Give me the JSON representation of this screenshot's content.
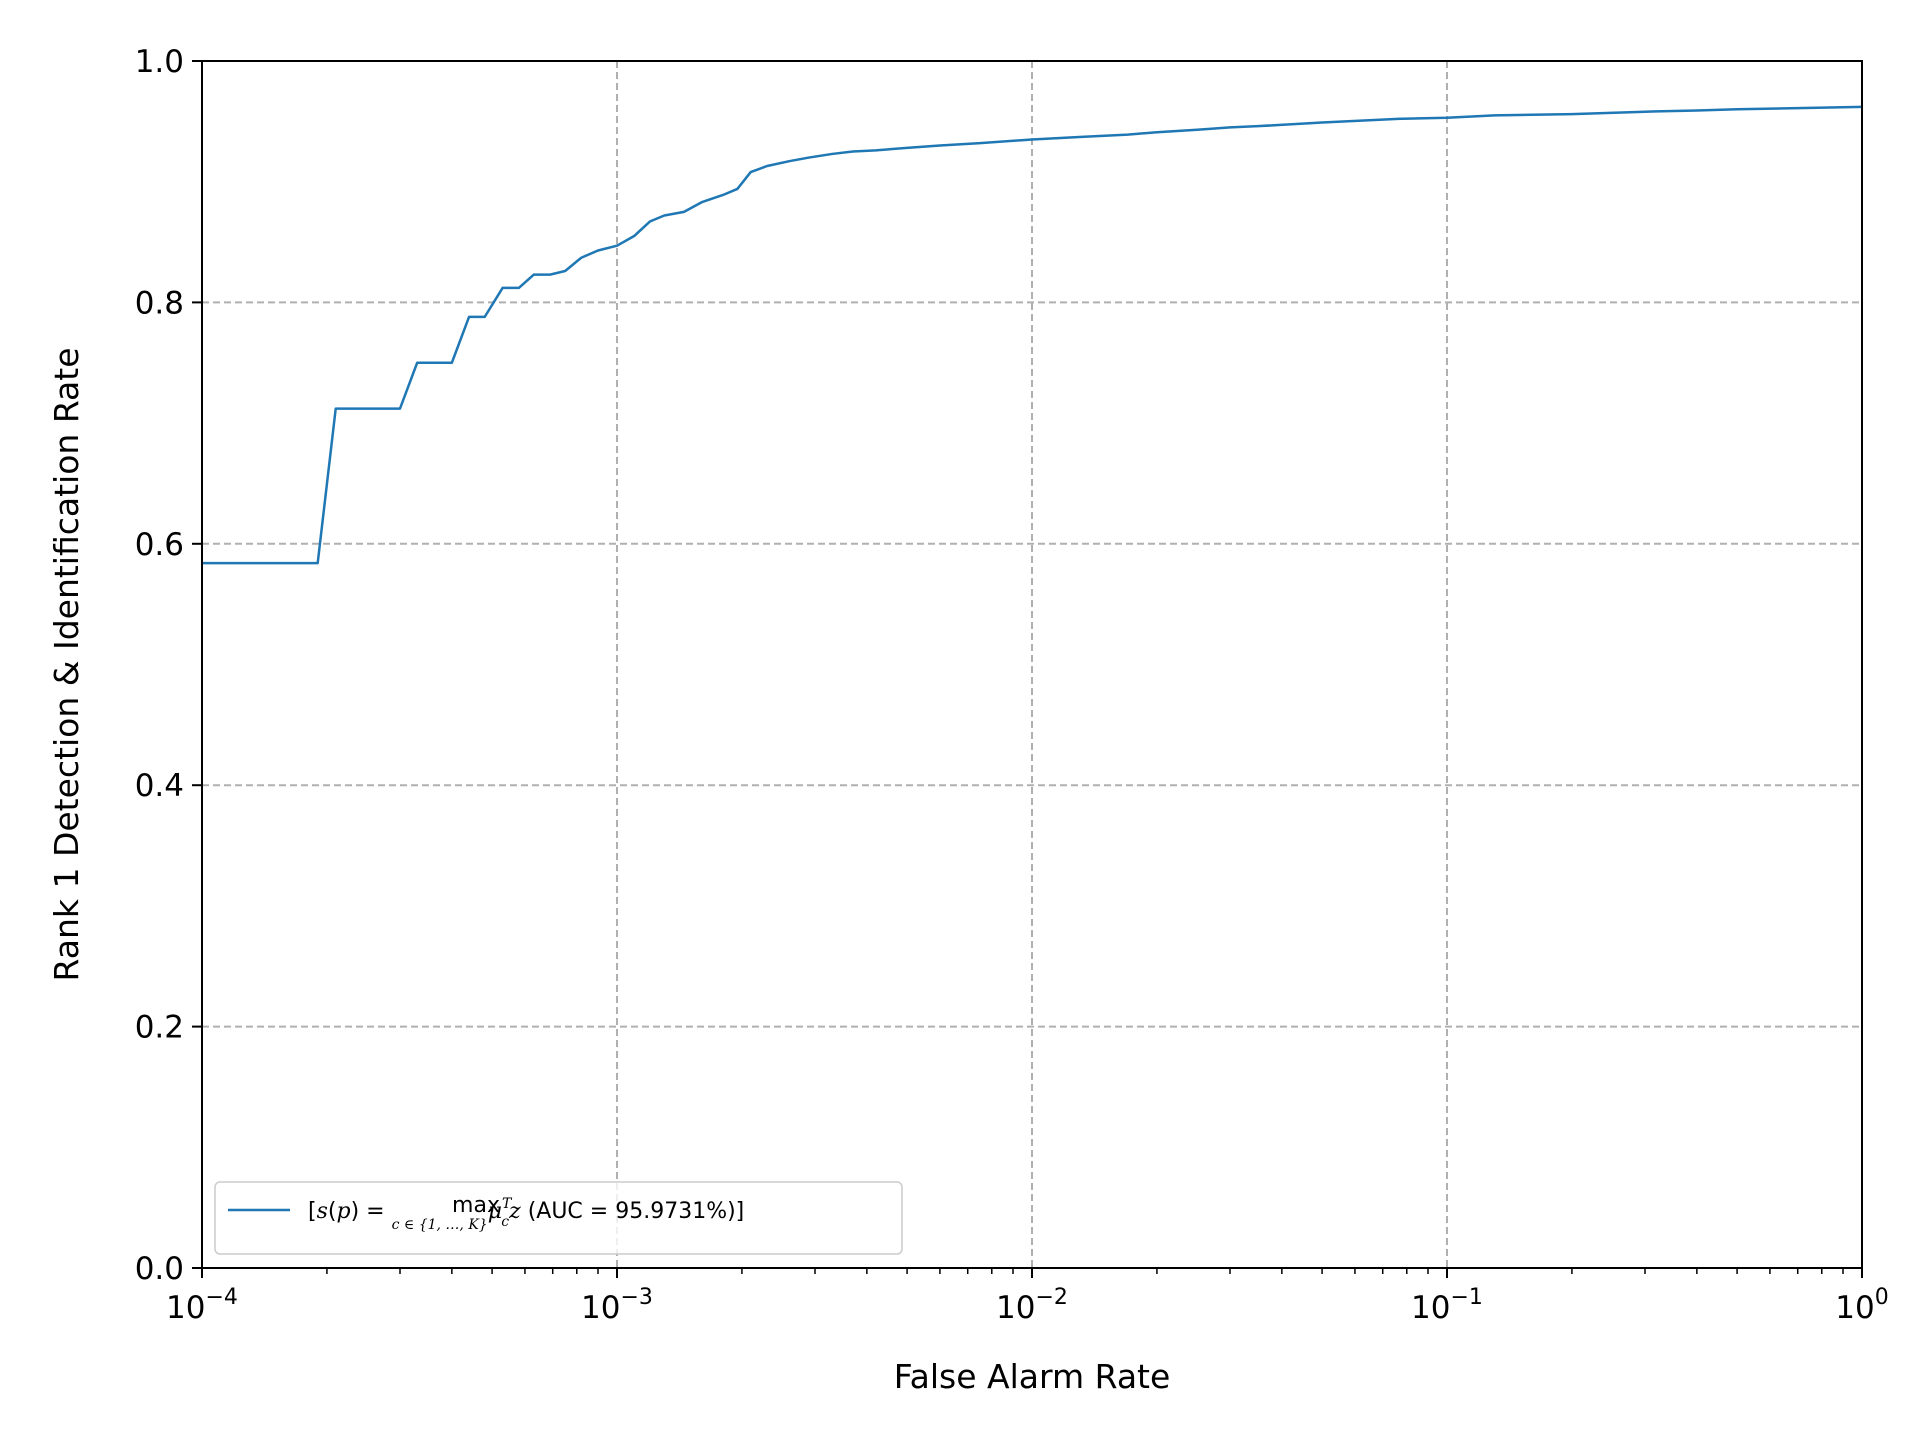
{
  "chart_data": {
    "type": "line",
    "title": "",
    "xlabel": "False Alarm Rate",
    "ylabel": "Rank 1 Detection & Identification Rate",
    "xscale": "log",
    "xlim": [
      0.0001,
      1
    ],
    "ylim": [
      0.0,
      1.0
    ],
    "grid": true,
    "grid_style": "dashed",
    "legend_position": "lower-left",
    "x_ticks": [
      {
        "base": "10",
        "exp": "−4",
        "value": 0.0001
      },
      {
        "base": "10",
        "exp": "−3",
        "value": 0.001
      },
      {
        "base": "10",
        "exp": "−2",
        "value": 0.01
      },
      {
        "base": "10",
        "exp": "−1",
        "value": 0.1
      },
      {
        "base": "10",
        "exp": "0",
        "value": 1
      }
    ],
    "y_ticks": [
      "0.0",
      "0.2",
      "0.4",
      "0.6",
      "0.8",
      "1.0"
    ],
    "series": [
      {
        "name": "[s(p) = max c∈{1,…,K} μcT z (AUC = 95.9731%)]",
        "legend": {
          "prefix": "[",
          "s": "s",
          "p": "p",
          "max": "max",
          "sub": "c ∈ {1, …, K}",
          "mu": "μ",
          "mu_sup": "T",
          "mu_sub": "c",
          "z": "z",
          "auc": " (AUC = 95.9731%)]"
        },
        "color": "#1f77b4",
        "x": [
          0.0001,
          0.00019,
          0.00021,
          0.00025,
          0.0003,
          0.00033,
          0.00036,
          0.0004,
          0.00044,
          0.00048,
          0.00053,
          0.00058,
          0.00063,
          0.00069,
          0.00075,
          0.00082,
          0.0009,
          0.001,
          0.0011,
          0.0012,
          0.0013,
          0.00145,
          0.0016,
          0.0018,
          0.00195,
          0.0021,
          0.0023,
          0.0026,
          0.0029,
          0.0033,
          0.0037,
          0.0042,
          0.005,
          0.006,
          0.0075,
          0.01,
          0.013,
          0.017,
          0.02,
          0.025,
          0.03,
          0.035,
          0.05,
          0.075,
          0.1,
          0.13,
          0.2,
          0.3,
          0.4,
          0.5,
          0.7,
          1.0
        ],
        "y": [
          0.584,
          0.584,
          0.712,
          0.712,
          0.712,
          0.75,
          0.75,
          0.75,
          0.788,
          0.788,
          0.812,
          0.812,
          0.823,
          0.823,
          0.826,
          0.837,
          0.843,
          0.847,
          0.855,
          0.867,
          0.872,
          0.875,
          0.883,
          0.889,
          0.894,
          0.908,
          0.913,
          0.917,
          0.92,
          0.923,
          0.925,
          0.926,
          0.928,
          0.93,
          0.932,
          0.935,
          0.937,
          0.939,
          0.941,
          0.943,
          0.945,
          0.946,
          0.949,
          0.952,
          0.953,
          0.955,
          0.956,
          0.958,
          0.959,
          0.96,
          0.961,
          0.962
        ]
      }
    ]
  }
}
